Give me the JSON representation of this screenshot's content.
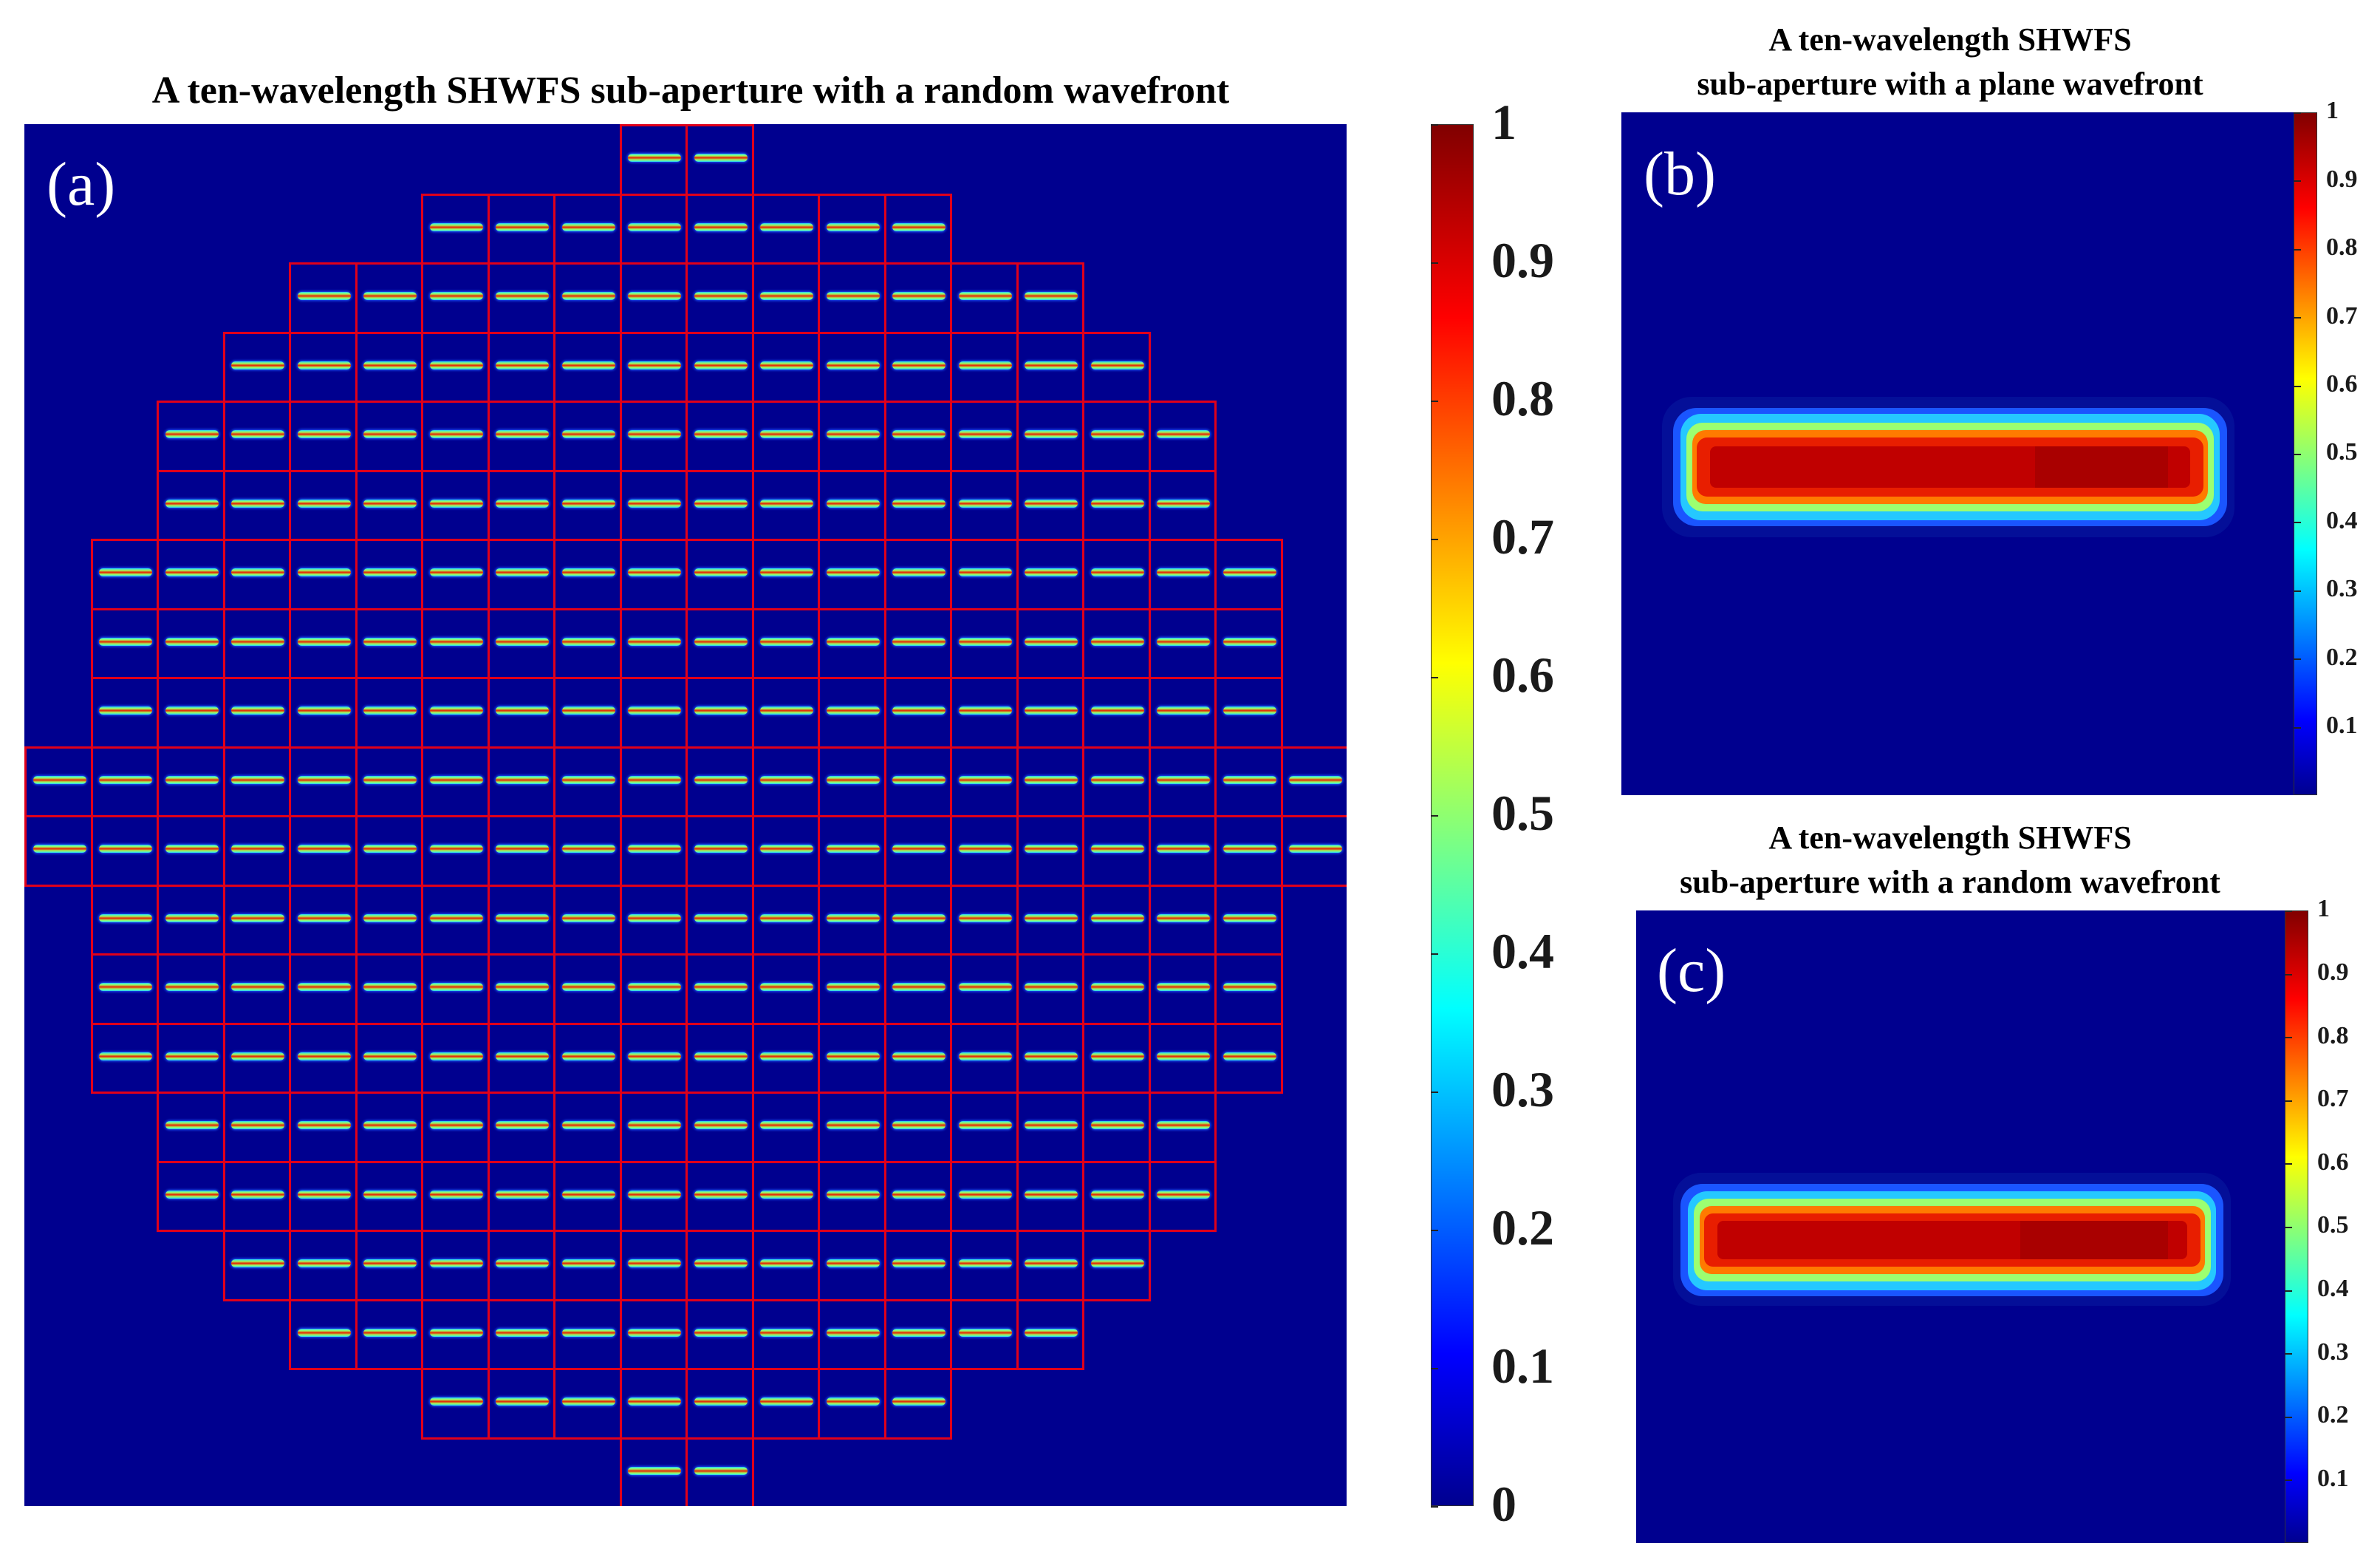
{
  "chart_data": [
    {
      "id": "a",
      "type": "heatmap",
      "panel_label": "(a)",
      "title": "A ten-wavelength SHWFS sub-aperture with a random wavefront",
      "description_rows": [
        {
          "row": 1,
          "lenslets": 2
        },
        {
          "row": 2,
          "lenslets": 8
        },
        {
          "row": 3,
          "lenslets": 12
        },
        {
          "row": 4,
          "lenslets": 14
        },
        {
          "row": 5,
          "lenslets": 16
        },
        {
          "row": 6,
          "lenslets": 16
        },
        {
          "row": 7,
          "lenslets": 18
        },
        {
          "row": 8,
          "lenslets": 18
        },
        {
          "row": 9,
          "lenslets": 18
        },
        {
          "row": 10,
          "lenslets": 20
        },
        {
          "row": 11,
          "lenslets": 20
        },
        {
          "row": 12,
          "lenslets": 18
        },
        {
          "row": 13,
          "lenslets": 18
        },
        {
          "row": 14,
          "lenslets": 18
        },
        {
          "row": 15,
          "lenslets": 16
        },
        {
          "row": 16,
          "lenslets": 16
        },
        {
          "row": 17,
          "lenslets": 14
        },
        {
          "row": 18,
          "lenslets": 12
        },
        {
          "row": 19,
          "lenslets": 8
        },
        {
          "row": 20,
          "lenslets": 2
        }
      ],
      "colorbar": {
        "min": 0,
        "max": 1,
        "ticks": [
          "0",
          "0.1",
          "0.2",
          "0.3",
          "0.4",
          "0.5",
          "0.6",
          "0.7",
          "0.8",
          "0.9",
          "1"
        ]
      },
      "colormap": "jet"
    },
    {
      "id": "b",
      "type": "heatmap",
      "panel_label": "(b)",
      "title_lines": [
        "A ten-wavelength SHWFS",
        "sub-aperture with a plane wavefront"
      ],
      "spot": {
        "shape": "elongated line",
        "peak_value": 1.0,
        "core_value": 0.9
      },
      "colorbar": {
        "min": 0,
        "max": 1,
        "ticks": [
          "0.1",
          "0.2",
          "0.3",
          "0.4",
          "0.5",
          "0.6",
          "0.7",
          "0.8",
          "0.9",
          "1"
        ]
      },
      "colormap": "jet"
    },
    {
      "id": "c",
      "type": "heatmap",
      "panel_label": "(c)",
      "title_lines": [
        "A ten-wavelength SHWFS",
        "sub-aperture with a random wavefront"
      ],
      "spot": {
        "shape": "elongated line",
        "peak_value": 1.0,
        "core_value": 0.9
      },
      "colorbar": {
        "min": 0,
        "max": 1,
        "ticks": [
          "0.1",
          "0.2",
          "0.3",
          "0.4",
          "0.5",
          "0.6",
          "0.7",
          "0.8",
          "0.9",
          "1"
        ]
      },
      "colormap": "jet"
    }
  ],
  "colors": {
    "background": "#00008f",
    "grid": "#e0001a"
  }
}
